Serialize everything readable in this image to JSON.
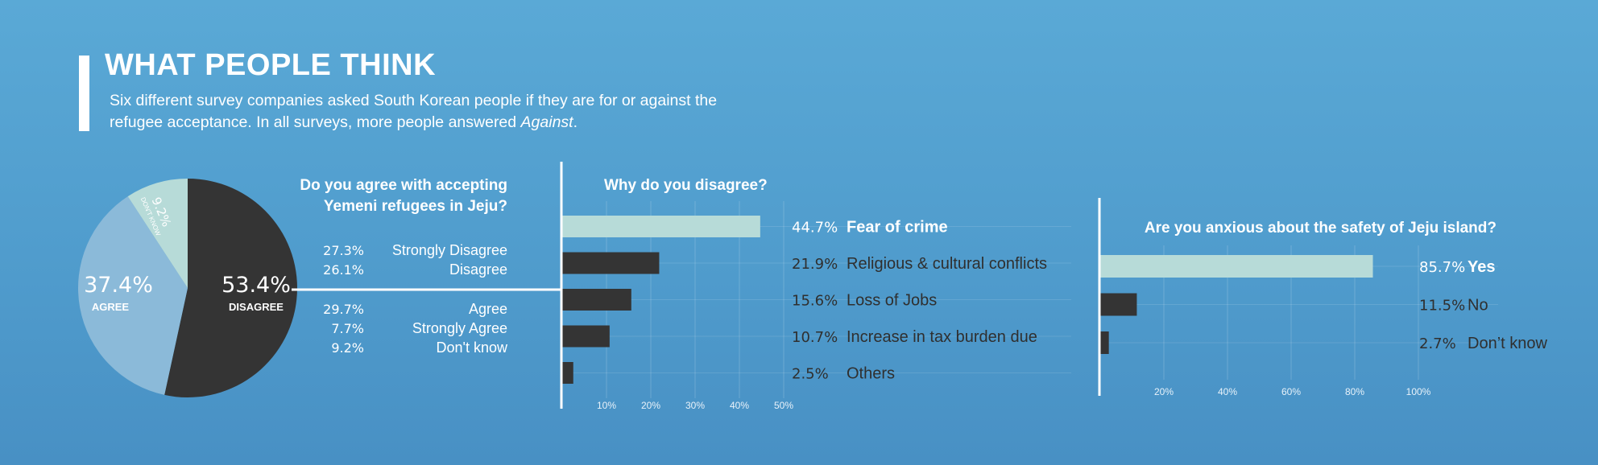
{
  "header": {
    "title": "WHAT PEOPLE THINK",
    "subtitle_start": "Six different survey companies asked South Korean people if they are for or against the refugee acceptance. In all surveys, more people answered ",
    "subtitle_em": "Against",
    "subtitle_end": "."
  },
  "chart_data": [
    {
      "type": "pie",
      "title": "Do you agree with accepting Yemeni refugees in Jeju?",
      "slices": [
        {
          "label": "DISAGREE",
          "value": 53.4,
          "display": "53.4%",
          "color": "#343434"
        },
        {
          "label": "AGREE",
          "value": 37.4,
          "display": "37.4%",
          "color": "#8bbad9"
        },
        {
          "label": "DON'T KNOW",
          "value": 9.2,
          "display": "9.2%",
          "color": "#b7dbd8"
        }
      ],
      "breakdown": [
        {
          "display": "27.3%",
          "label": "Strongly Disagree",
          "value": 27.3
        },
        {
          "display": "26.1%",
          "label": "Disagree",
          "value": 26.1
        },
        {
          "display": "29.7%",
          "label": "Agree",
          "value": 29.7
        },
        {
          "display": "7.7%",
          "label": "Strongly Agree",
          "value": 7.7
        },
        {
          "display": "9.2%",
          "label": "Don't know",
          "value": 9.2
        }
      ]
    },
    {
      "type": "bar",
      "orientation": "horizontal",
      "title": "Why do you disagree?",
      "categories": [
        "Fear of crime",
        "Religious & cultural conflicts",
        "Loss of Jobs",
        "Increase in tax burden due",
        "Others"
      ],
      "values": [
        44.7,
        21.9,
        15.6,
        10.7,
        2.5
      ],
      "value_labels": [
        "44.7%",
        "21.9%",
        "15.6%",
        "10.7%",
        "2.5%"
      ],
      "ticks": [
        10,
        20,
        30,
        40,
        50
      ],
      "tick_labels": [
        "10%",
        "20%",
        "30%",
        "40%",
        "50%"
      ],
      "xlim": [
        0,
        50
      ],
      "grid": true,
      "highlight_color": "#b7dbd8",
      "bar_color": "#343434"
    },
    {
      "type": "bar",
      "orientation": "horizontal",
      "title": "Are you anxious about the safety of Jeju island?",
      "categories": [
        "Yes",
        "No",
        "Don’t know"
      ],
      "values": [
        85.7,
        11.5,
        2.7
      ],
      "value_labels": [
        "85.7%",
        "11.5%",
        "2.7%"
      ],
      "ticks": [
        20,
        40,
        60,
        80,
        100
      ],
      "tick_labels": [
        "20%",
        "40%",
        "60%",
        "80%",
        "100%"
      ],
      "xlim": [
        0,
        100
      ],
      "grid": true,
      "highlight_color": "#b7dbd8",
      "bar_color": "#343434"
    }
  ]
}
